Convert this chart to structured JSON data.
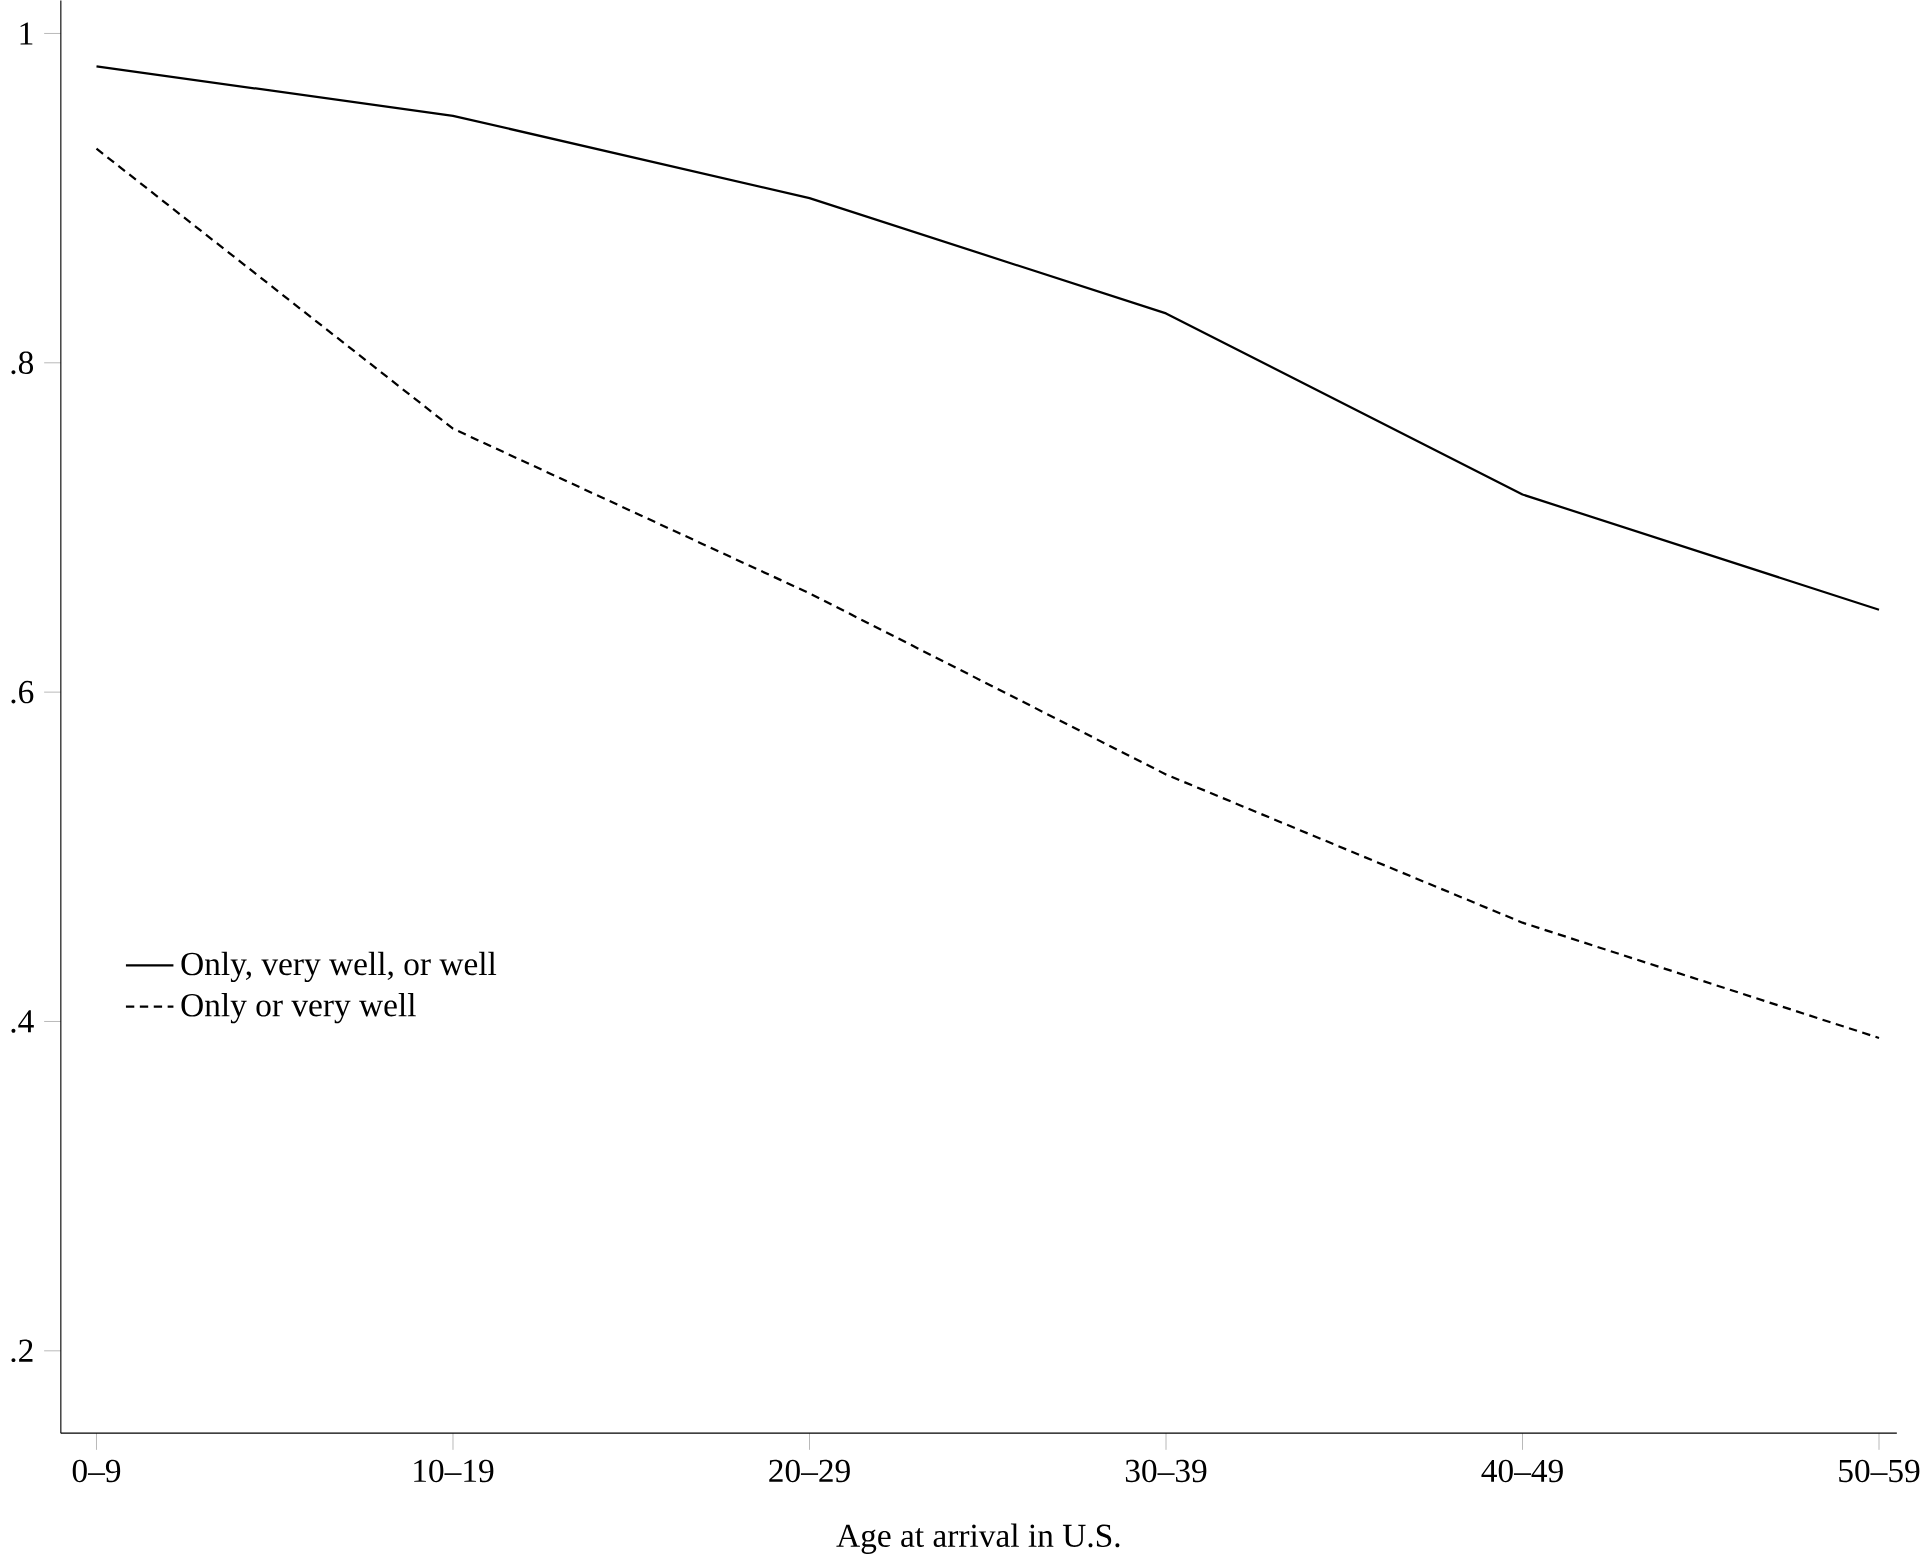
{
  "chart_data": {
    "type": "line",
    "xlabel": "Age at arrival in U.S.",
    "categories": [
      "0–9",
      "10–19",
      "20–29",
      "30–39",
      "40–49",
      "50–59"
    ],
    "series": [
      {
        "name": "Only, very well, or well",
        "color": "#000000",
        "line_style": "solid",
        "values": [
          0.98,
          0.95,
          0.9,
          0.83,
          0.72,
          0.65
        ]
      },
      {
        "name": "Only or very well",
        "color": "#000000",
        "line_style": "dashed",
        "values": [
          0.93,
          0.76,
          0.66,
          0.55,
          0.46,
          0.39
        ]
      }
    ],
    "ylim": [
      0.15,
      1.02
    ],
    "yticks": [
      {
        "value": 0.2,
        "label": ".2"
      },
      {
        "value": 0.4,
        "label": ".4"
      },
      {
        "value": 0.6,
        "label": ".6"
      },
      {
        "value": 0.8,
        "label": ".8"
      },
      1
    ],
    "grid": false,
    "legend": "bottom left",
    "marker": "none"
  }
}
